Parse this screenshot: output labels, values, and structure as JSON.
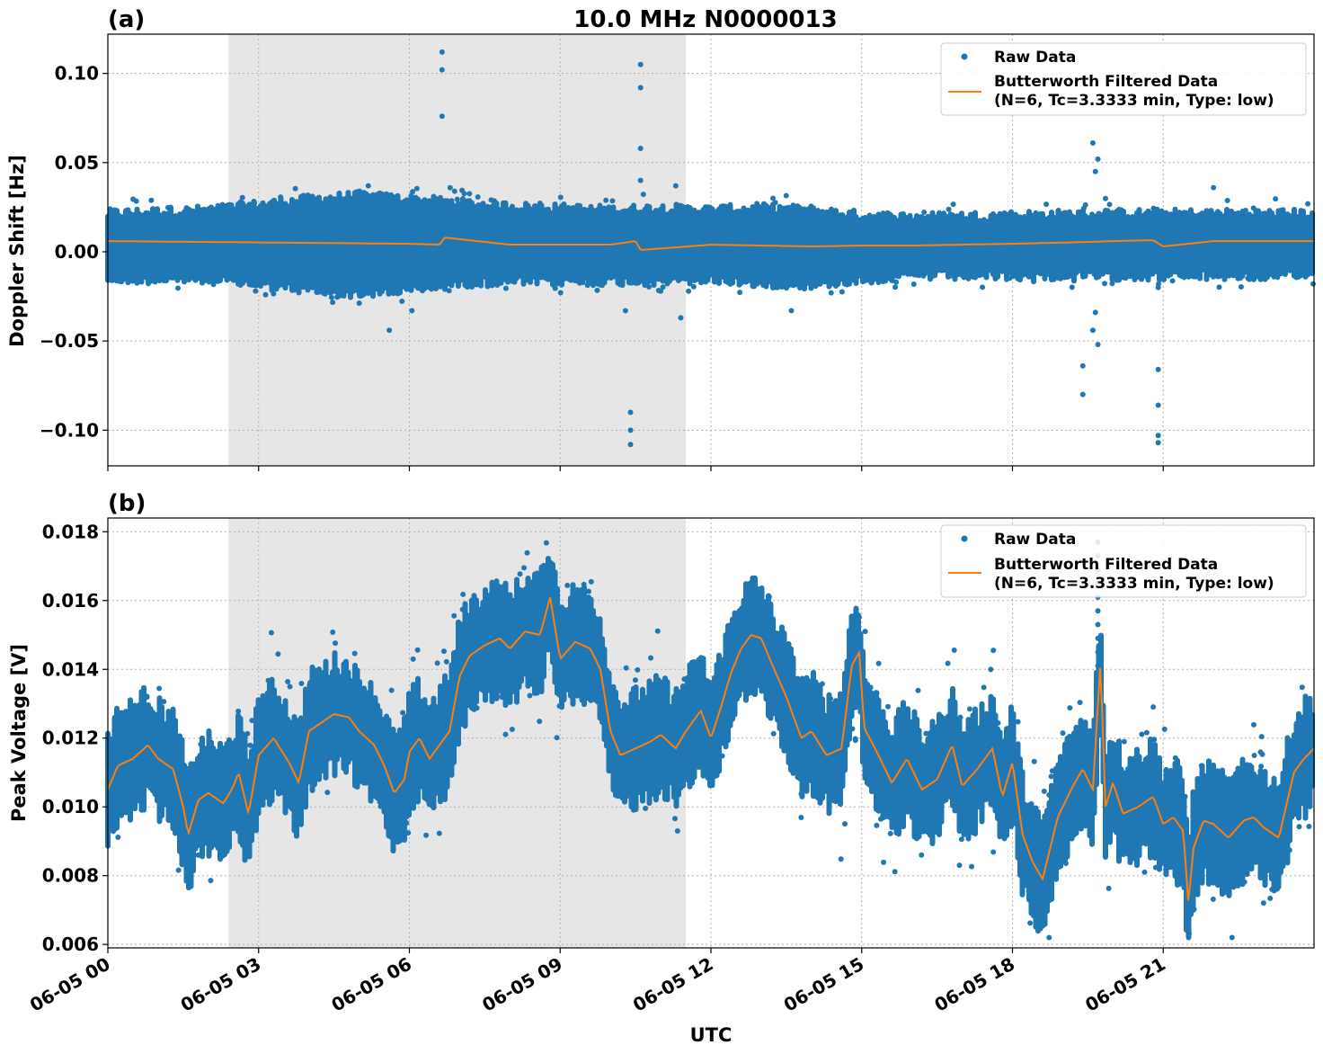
{
  "figure": {
    "title": "10.0 MHz N0000013",
    "xlabel": "UTC",
    "colors": {
      "raw": "#1f77b4",
      "filtered": "#ff7f0e",
      "shade": "#e6e6e6"
    }
  },
  "chart_data": [
    {
      "type": "scatter",
      "panel_label": "(a)",
      "title": "10.0 MHz N0000013",
      "xlabel": "",
      "ylabel": "Doppler Shift [Hz]",
      "x_range_hours": [
        0,
        24
      ],
      "ylim": [
        -0.12,
        0.122
      ],
      "yticks": [
        {
          "value": 0.1,
          "label": "0.10"
        },
        {
          "value": 0.05,
          "label": "0.05"
        },
        {
          "value": 0.0,
          "label": "0.00"
        },
        {
          "value": -0.05,
          "label": "−0.05"
        },
        {
          "value": -0.1,
          "label": "−0.10"
        }
      ],
      "grid": true,
      "legend_placement": "top-right",
      "legend": [
        "Raw Data",
        "Butterworth Filtered Data",
        "(N=6, Tc=3.3333 min, Type: low)"
      ],
      "shaded_interval_hours": [
        2.4,
        11.5
      ],
      "series": [
        {
          "name": "Raw Data",
          "kind": "points",
          "band": {
            "x": [
              0,
              2,
              4,
              5,
              6,
              7,
              8,
              9,
              10,
              11,
              12,
              13,
              14,
              15,
              16,
              18,
              20,
              22,
              24
            ],
            "lower": [
              -0.012,
              -0.012,
              -0.018,
              -0.02,
              -0.018,
              -0.014,
              -0.013,
              -0.013,
              -0.013,
              -0.013,
              -0.012,
              -0.014,
              -0.015,
              -0.012,
              -0.01,
              -0.01,
              -0.01,
              -0.01,
              -0.01
            ],
            "upper": [
              0.018,
              0.02,
              0.026,
              0.028,
              0.026,
              0.024,
              0.022,
              0.021,
              0.02,
              0.021,
              0.02,
              0.021,
              0.02,
              0.017,
              0.016,
              0.017,
              0.018,
              0.018,
              0.018
            ]
          },
          "outliers": [
            {
              "x": 6.65,
              "y": 0.112
            },
            {
              "x": 6.65,
              "y": 0.102
            },
            {
              "x": 6.65,
              "y": 0.076
            },
            {
              "x": 10.6,
              "y": 0.105
            },
            {
              "x": 10.6,
              "y": 0.092
            },
            {
              "x": 10.6,
              "y": 0.058
            },
            {
              "x": 10.6,
              "y": 0.04
            },
            {
              "x": 10.4,
              "y": -0.09
            },
            {
              "x": 10.4,
              "y": -0.1
            },
            {
              "x": 10.4,
              "y": -0.108
            },
            {
              "x": 10.3,
              "y": -0.033
            },
            {
              "x": 11.4,
              "y": -0.037
            },
            {
              "x": 5.6,
              "y": -0.044
            },
            {
              "x": 6.05,
              "y": -0.033
            },
            {
              "x": 13.6,
              "y": -0.033
            },
            {
              "x": 19.6,
              "y": 0.061
            },
            {
              "x": 19.7,
              "y": 0.052
            },
            {
              "x": 19.65,
              "y": 0.045
            },
            {
              "x": 19.6,
              "y": -0.044
            },
            {
              "x": 19.7,
              "y": -0.052
            },
            {
              "x": 19.65,
              "y": -0.034
            },
            {
              "x": 19.4,
              "y": -0.064
            },
            {
              "x": 19.4,
              "y": -0.08
            },
            {
              "x": 20.9,
              "y": -0.066
            },
            {
              "x": 20.9,
              "y": -0.086
            },
            {
              "x": 20.9,
              "y": -0.103
            },
            {
              "x": 20.9,
              "y": -0.107
            },
            {
              "x": 20.9,
              "y": -0.02
            },
            {
              "x": 22.0,
              "y": 0.036
            },
            {
              "x": 11.3,
              "y": 0.037
            }
          ]
        },
        {
          "name": "Butterworth Filtered Data",
          "kind": "line",
          "x": [
            0,
            2,
            4,
            6,
            6.6,
            6.7,
            8,
            10,
            10.5,
            10.6,
            12,
            14,
            15,
            16,
            18,
            19.5,
            20,
            20.8,
            21,
            22,
            24
          ],
          "y": [
            0.006,
            0.0055,
            0.005,
            0.0045,
            0.004,
            0.008,
            0.004,
            0.004,
            0.006,
            0.001,
            0.004,
            0.003,
            0.0035,
            0.0035,
            0.0045,
            0.0055,
            0.006,
            0.0065,
            0.003,
            0.006,
            0.006
          ]
        }
      ]
    },
    {
      "type": "scatter",
      "panel_label": "(b)",
      "xlabel": "UTC",
      "ylabel": "Peak Voltage [V]",
      "x_range_hours": [
        0,
        24
      ],
      "ylim": [
        0.0059,
        0.0184
      ],
      "yticks": [
        {
          "value": 0.018,
          "label": "0.018"
        },
        {
          "value": 0.016,
          "label": "0.016"
        },
        {
          "value": 0.014,
          "label": "0.014"
        },
        {
          "value": 0.012,
          "label": "0.012"
        },
        {
          "value": 0.01,
          "label": "0.010"
        },
        {
          "value": 0.008,
          "label": "0.008"
        },
        {
          "value": 0.006,
          "label": "0.006"
        }
      ],
      "xticks": [
        {
          "value": 0,
          "label": "06-05 00"
        },
        {
          "value": 3,
          "label": "06-05 03"
        },
        {
          "value": 6,
          "label": "06-05 06"
        },
        {
          "value": 9,
          "label": "06-05 09"
        },
        {
          "value": 12,
          "label": "06-05 12"
        },
        {
          "value": 15,
          "label": "06-05 15"
        },
        {
          "value": 18,
          "label": "06-05 18"
        },
        {
          "value": 21,
          "label": "06-05 21"
        }
      ],
      "grid": true,
      "legend_placement": "top-right",
      "legend": [
        "Raw Data",
        "Butterworth Filtered Data",
        "(N=6, Tc=3.3333 min, Type: low)"
      ],
      "shaded_interval_hours": [
        2.4,
        11.5
      ],
      "series": [
        {
          "name": "Raw Data",
          "kind": "points",
          "spread": 0.0013
        },
        {
          "name": "Butterworth Filtered Data",
          "kind": "line",
          "x": [
            0,
            0.2,
            0.5,
            0.8,
            1.0,
            1.3,
            1.5,
            1.6,
            1.8,
            2.0,
            2.3,
            2.5,
            2.6,
            2.8,
            3.0,
            3.3,
            3.6,
            3.8,
            4.0,
            4.2,
            4.5,
            4.8,
            5.0,
            5.3,
            5.5,
            5.7,
            5.9,
            6.0,
            6.2,
            6.4,
            6.6,
            6.8,
            7.0,
            7.2,
            7.5,
            7.8,
            8.0,
            8.3,
            8.6,
            8.8,
            9.0,
            9.3,
            9.6,
            9.8,
            10.0,
            10.2,
            10.5,
            10.8,
            11.0,
            11.3,
            11.5,
            11.8,
            12.0,
            12.2,
            12.4,
            12.6,
            12.8,
            13.0,
            13.2,
            13.5,
            13.8,
            14.0,
            14.3,
            14.6,
            14.8,
            14.95,
            15.05,
            15.3,
            15.6,
            15.9,
            16.2,
            16.5,
            16.8,
            17.0,
            17.3,
            17.6,
            17.8,
            18.0,
            18.2,
            18.4,
            18.6,
            18.9,
            19.2,
            19.4,
            19.6,
            19.75,
            19.85,
            20.0,
            20.2,
            20.5,
            20.8,
            21.0,
            21.2,
            21.4,
            21.5,
            21.6,
            21.8,
            22.0,
            22.3,
            22.6,
            22.8,
            23.0,
            23.3,
            23.6,
            23.8,
            24.0
          ],
          "y": [
            0.0105,
            0.0112,
            0.0114,
            0.0118,
            0.0114,
            0.0111,
            0.01,
            0.0092,
            0.0102,
            0.0104,
            0.0101,
            0.0106,
            0.011,
            0.0098,
            0.0115,
            0.012,
            0.0113,
            0.0107,
            0.0122,
            0.0124,
            0.0127,
            0.0126,
            0.0122,
            0.0118,
            0.0112,
            0.0104,
            0.0108,
            0.0116,
            0.012,
            0.0114,
            0.0118,
            0.0122,
            0.0138,
            0.0144,
            0.0147,
            0.0149,
            0.0146,
            0.0151,
            0.015,
            0.0161,
            0.0143,
            0.0148,
            0.0146,
            0.014,
            0.0122,
            0.0115,
            0.0117,
            0.0119,
            0.0121,
            0.0117,
            0.0122,
            0.0128,
            0.012,
            0.0129,
            0.0139,
            0.0146,
            0.015,
            0.0149,
            0.0142,
            0.0132,
            0.012,
            0.0122,
            0.0115,
            0.0117,
            0.0141,
            0.0145,
            0.0123,
            0.0116,
            0.0107,
            0.0114,
            0.0105,
            0.0108,
            0.0118,
            0.0106,
            0.0111,
            0.0117,
            0.0103,
            0.0113,
            0.0092,
            0.0084,
            0.0079,
            0.0097,
            0.0106,
            0.0111,
            0.0105,
            0.0142,
            0.01,
            0.0107,
            0.0098,
            0.01,
            0.0103,
            0.0095,
            0.0097,
            0.0093,
            0.0072,
            0.0088,
            0.0096,
            0.0095,
            0.0091,
            0.0096,
            0.0097,
            0.0094,
            0.0091,
            0.011,
            0.0114,
            0.0117
          ]
        }
      ]
    }
  ]
}
